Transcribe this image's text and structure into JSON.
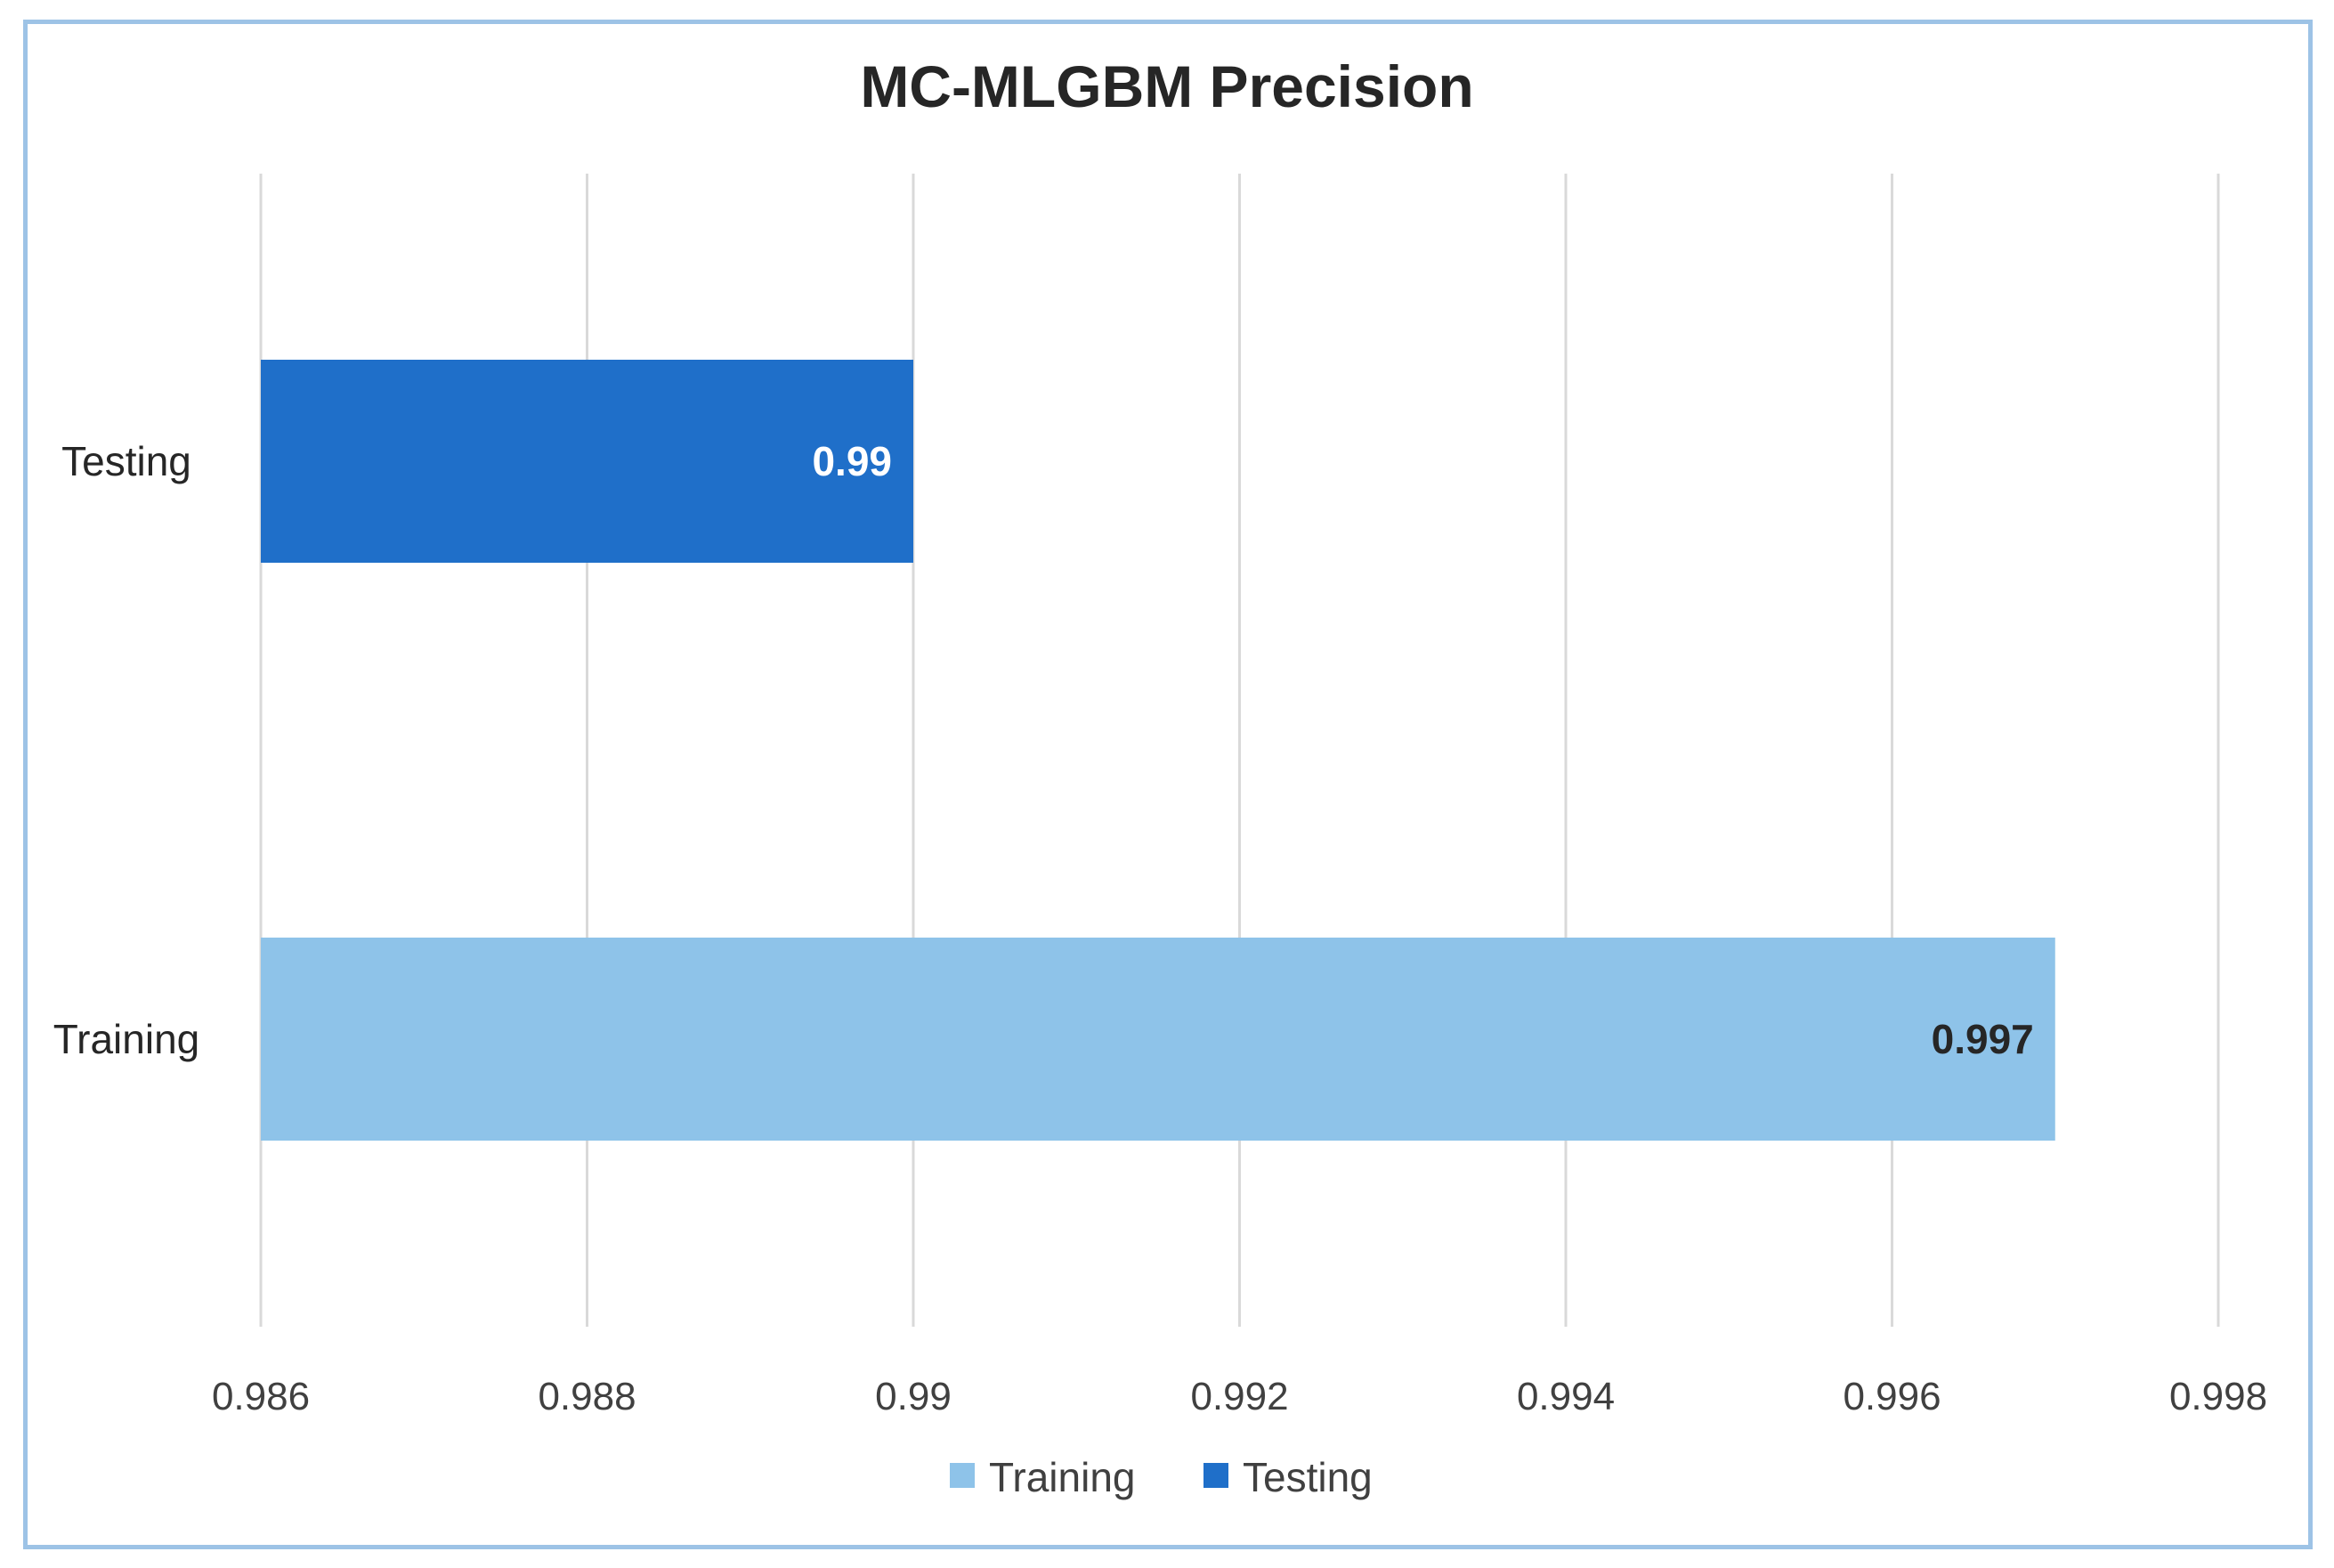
{
  "chart_data": {
    "type": "bar",
    "orientation": "horizontal",
    "title": "MC-MLGBM Precision",
    "xlabel": "",
    "ylabel": "",
    "categories": [
      "Testing",
      "Training"
    ],
    "series": [
      {
        "name": "Testing",
        "category": "Testing",
        "value": 0.99,
        "label": "0.99",
        "color": "#1f6fc9",
        "label_color": "#ffffff"
      },
      {
        "name": "Training",
        "category": "Training",
        "value": 0.997,
        "label": "0.997",
        "color": "#8ec3e9",
        "label_color": "#262626"
      }
    ],
    "xlim": [
      0.986,
      0.998
    ],
    "xticks": [
      0.986,
      0.988,
      0.99,
      0.992,
      0.994,
      0.996,
      0.998
    ],
    "xtick_labels": [
      "0.986",
      "0.988",
      "0.99",
      "0.992",
      "0.994",
      "0.996",
      "0.998"
    ],
    "grid": true,
    "legend": {
      "placement": "bottom",
      "entries": [
        {
          "name": "Training",
          "color": "#8ec3e9"
        },
        {
          "name": "Testing",
          "color": "#1f6fc9"
        }
      ]
    },
    "frame_color": "#9dc3e6",
    "grid_color": "#d9d9d9"
  }
}
